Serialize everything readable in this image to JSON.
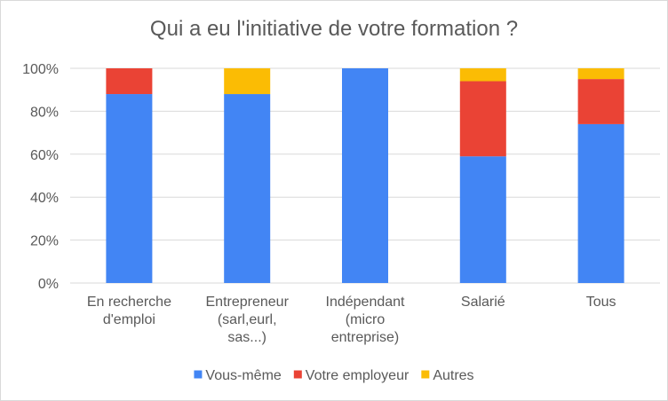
{
  "chart_data": {
    "type": "bar",
    "stacked": true,
    "normalized": true,
    "title": "Qui a eu l'initiative de votre formation ?",
    "categories": [
      [
        "En recherche",
        "d'emploi"
      ],
      [
        "Entrepreneur",
        "(sarl,eurl,",
        "sas...)"
      ],
      [
        "Indépendant",
        "(micro",
        "entreprise)"
      ],
      [
        "Salarié"
      ],
      [
        "Tous"
      ]
    ],
    "series": [
      {
        "name": "Vous-même",
        "color": "#4285F4",
        "values": [
          88,
          88,
          100,
          59,
          74
        ]
      },
      {
        "name": "Votre employeur",
        "color": "#EA4335",
        "values": [
          12,
          0,
          0,
          35,
          21
        ]
      },
      {
        "name": "Autres",
        "color": "#FBBC04",
        "values": [
          0,
          12,
          0,
          6,
          5
        ]
      }
    ],
    "ylim": [
      0,
      100
    ],
    "yticks": [
      "0%",
      "20%",
      "40%",
      "60%",
      "80%",
      "100%"
    ],
    "grid": true,
    "legend_position": "bottom"
  }
}
